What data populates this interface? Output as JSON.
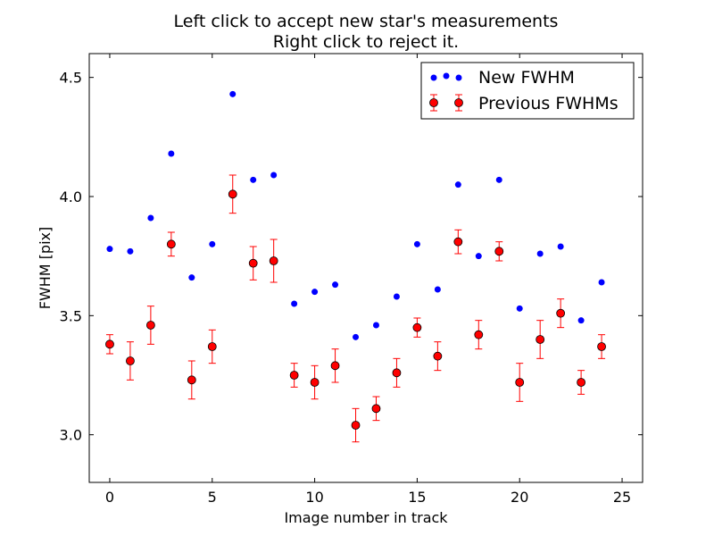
{
  "chart_data": {
    "type": "scatter",
    "title_lines": [
      "Left click to accept new star's measurements",
      "Right click to reject it."
    ],
    "xlabel": "Image number in track",
    "ylabel": "FWHM [pix]",
    "xlim": [
      -1,
      26
    ],
    "ylim": [
      2.8,
      4.6
    ],
    "xticks": [
      0,
      5,
      10,
      15,
      20,
      25
    ],
    "yticks": [
      3.0,
      3.5,
      4.0,
      4.5
    ],
    "xtick_labels": [
      "0",
      "5",
      "10",
      "15",
      "20",
      "25"
    ],
    "ytick_labels": [
      "3.0",
      "3.5",
      "4.0",
      "4.5"
    ],
    "grid": false,
    "legend_position": "upper right",
    "series": [
      {
        "name": "New FWHM",
        "color": "#0000ff",
        "marker": "dot",
        "x": [
          0,
          1,
          2,
          3,
          4,
          5,
          6,
          7,
          8,
          9,
          10,
          11,
          12,
          13,
          14,
          15,
          16,
          17,
          18,
          19,
          20,
          21,
          22,
          23,
          24
        ],
        "y": [
          3.78,
          3.77,
          3.91,
          4.18,
          3.66,
          3.8,
          4.43,
          4.07,
          4.09,
          3.55,
          3.6,
          3.63,
          3.41,
          3.46,
          3.58,
          3.8,
          3.61,
          4.05,
          3.75,
          4.07,
          3.53,
          3.76,
          3.79,
          3.48,
          3.64
        ]
      },
      {
        "name": "Previous FWHMs",
        "color": "#ff0000",
        "errorbar_color": "#ff0000",
        "marker": "circle",
        "x": [
          0,
          1,
          2,
          3,
          4,
          5,
          6,
          7,
          8,
          9,
          10,
          11,
          12,
          13,
          14,
          15,
          16,
          17,
          18,
          19,
          20,
          21,
          22,
          23,
          24
        ],
        "y": [
          3.38,
          3.31,
          3.46,
          3.8,
          3.23,
          3.37,
          4.01,
          3.72,
          3.73,
          3.25,
          3.22,
          3.29,
          3.04,
          3.11,
          3.26,
          3.45,
          3.33,
          3.81,
          3.42,
          3.77,
          3.22,
          3.4,
          3.51,
          3.22,
          3.37
        ],
        "yerr": [
          0.04,
          0.08,
          0.08,
          0.05,
          0.08,
          0.07,
          0.08,
          0.07,
          0.09,
          0.05,
          0.07,
          0.07,
          0.07,
          0.05,
          0.06,
          0.04,
          0.06,
          0.05,
          0.06,
          0.04,
          0.08,
          0.08,
          0.06,
          0.05,
          0.05
        ]
      }
    ]
  }
}
